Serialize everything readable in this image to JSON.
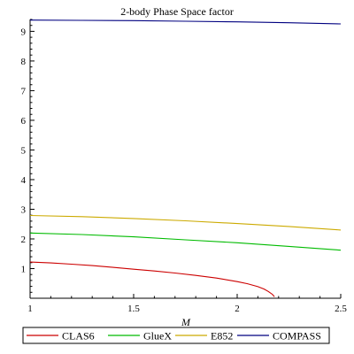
{
  "chart_data": {
    "type": "line",
    "title": "2-body Phase Space factor",
    "xlabel": "M",
    "ylabel": "",
    "xlim": [
      1,
      2.5
    ],
    "ylim": [
      0,
      9.4
    ],
    "x_ticks": [
      1,
      1.5,
      2,
      2.5
    ],
    "x_tick_labels": [
      "1",
      "1.5",
      "2",
      "2.5"
    ],
    "y_ticks": [
      1,
      2,
      3,
      4,
      5,
      6,
      7,
      8,
      9
    ],
    "y_tick_labels": [
      "1",
      "2",
      "3",
      "4",
      "5",
      "6",
      "7",
      "8",
      "9"
    ],
    "grid": false,
    "legend_position": "bottom",
    "series": [
      {
        "name": "CLAS6",
        "color": "#cc0000",
        "x": [
          1.0,
          1.1,
          1.2,
          1.3,
          1.4,
          1.5,
          1.6,
          1.7,
          1.8,
          1.9,
          2.0,
          2.05,
          2.1,
          2.13,
          2.15,
          2.17,
          2.18
        ],
        "y": [
          1.22,
          1.19,
          1.15,
          1.1,
          1.04,
          0.98,
          0.92,
          0.85,
          0.77,
          0.68,
          0.56,
          0.49,
          0.39,
          0.31,
          0.23,
          0.13,
          0.05
        ]
      },
      {
        "name": "GlueX",
        "color": "#00bb00",
        "x": [
          1.0,
          1.25,
          1.5,
          1.75,
          2.0,
          2.25,
          2.5
        ],
        "y": [
          2.2,
          2.15,
          2.07,
          1.97,
          1.87,
          1.75,
          1.62
        ]
      },
      {
        "name": "E852",
        "color": "#ccaa00",
        "x": [
          1.0,
          1.25,
          1.5,
          1.75,
          2.0,
          2.25,
          2.5
        ],
        "y": [
          2.79,
          2.75,
          2.69,
          2.61,
          2.52,
          2.42,
          2.3
        ]
      },
      {
        "name": "COMPASS",
        "color": "#000080",
        "x": [
          1.0,
          1.25,
          1.5,
          1.75,
          2.0,
          2.25,
          2.5
        ],
        "y": [
          9.38,
          9.37,
          9.36,
          9.34,
          9.32,
          9.29,
          9.25
        ]
      }
    ]
  }
}
